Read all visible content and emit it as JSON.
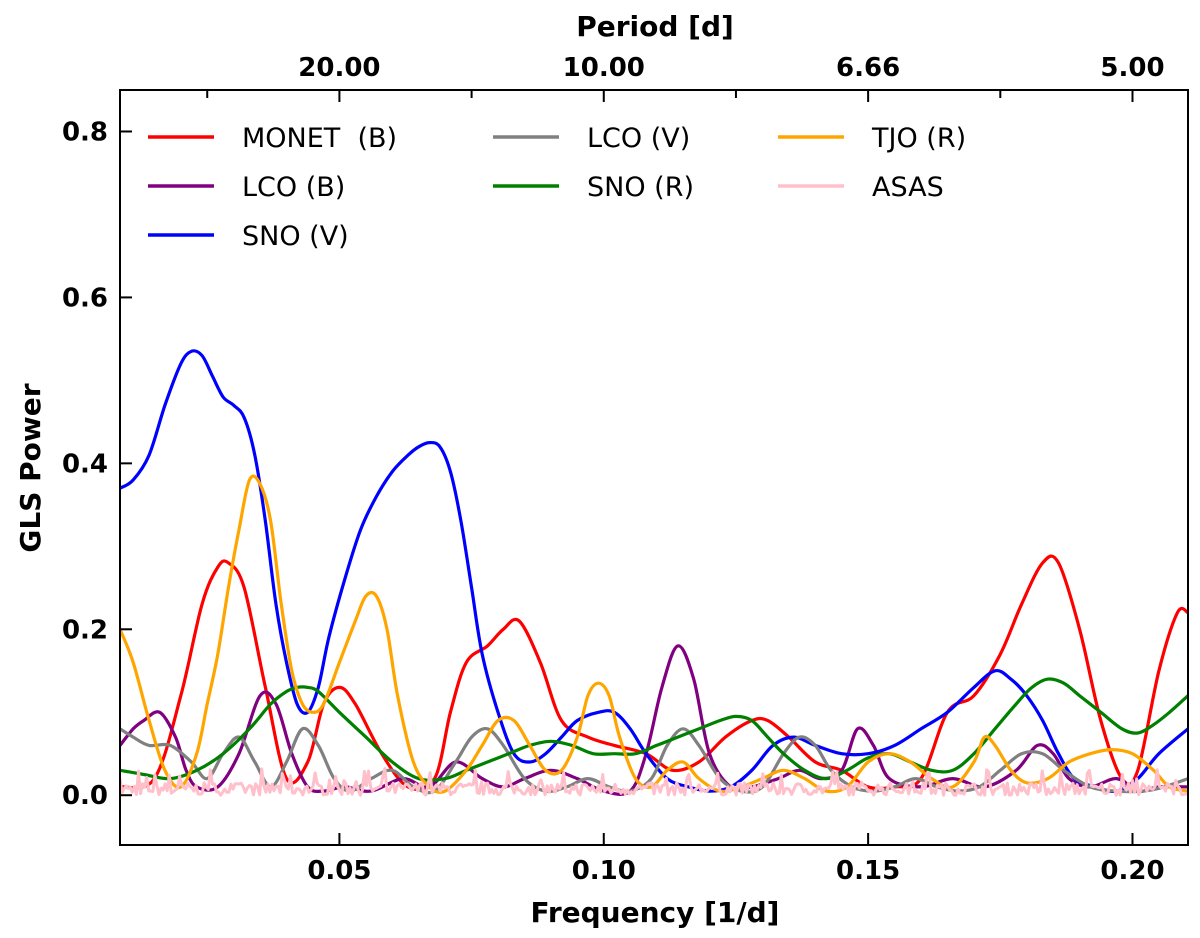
{
  "chart_data": {
    "type": "line",
    "title": "",
    "xlabel": "Frequency [1/d]",
    "ylabel": "GLS Power",
    "top_xlabel": "Period [d]",
    "xlim": [
      0.0085,
      0.2105
    ],
    "ylim": [
      -0.06,
      0.85
    ],
    "x_ticks": [
      0.05,
      0.1,
      0.15,
      0.2
    ],
    "x_tick_labels": [
      "0.05",
      "0.10",
      "0.15",
      "0.20"
    ],
    "y_ticks": [
      0.0,
      0.2,
      0.4,
      0.6,
      0.8
    ],
    "y_tick_labels": [
      "0.0",
      "0.2",
      "0.4",
      "0.6",
      "0.8"
    ],
    "top_ticks": [
      0.05,
      0.1,
      0.15,
      0.2
    ],
    "top_tick_labels": [
      "20.00",
      "10.00",
      "6.66",
      "5.00"
    ],
    "grid": false,
    "legend_location": "top-left",
    "series": [
      {
        "name": "MONET  (B)",
        "color": "#ff0000",
        "x": [
          0.0085,
          0.015,
          0.02,
          0.024,
          0.027,
          0.029,
          0.032,
          0.036,
          0.04,
          0.044,
          0.047,
          0.05,
          0.053,
          0.058,
          0.063,
          0.068,
          0.071,
          0.074,
          0.078,
          0.081,
          0.084,
          0.088,
          0.092,
          0.097,
          0.102,
          0.108,
          0.113,
          0.118,
          0.123,
          0.128,
          0.131,
          0.135,
          0.14,
          0.145,
          0.15,
          0.155,
          0.16,
          0.165,
          0.17,
          0.175,
          0.179,
          0.183,
          0.186,
          0.19,
          0.194,
          0.198,
          0.201,
          0.205,
          0.2085,
          0.2105
        ],
        "y": [
          0.01,
          0.02,
          0.12,
          0.23,
          0.275,
          0.28,
          0.25,
          0.13,
          0.02,
          0.04,
          0.11,
          0.13,
          0.11,
          0.05,
          0.01,
          0.02,
          0.1,
          0.16,
          0.18,
          0.2,
          0.21,
          0.16,
          0.09,
          0.07,
          0.06,
          0.05,
          0.03,
          0.04,
          0.07,
          0.09,
          0.09,
          0.07,
          0.04,
          0.03,
          0.01,
          0.01,
          0.02,
          0.1,
          0.12,
          0.17,
          0.23,
          0.28,
          0.28,
          0.2,
          0.09,
          0.02,
          0.03,
          0.15,
          0.22,
          0.22
        ]
      },
      {
        "name": "LCO (B)",
        "color": "#800080",
        "x": [
          0.0085,
          0.011,
          0.013,
          0.016,
          0.019,
          0.021,
          0.023,
          0.027,
          0.031,
          0.035,
          0.038,
          0.041,
          0.044,
          0.047,
          0.051,
          0.056,
          0.062,
          0.067,
          0.072,
          0.077,
          0.081,
          0.085,
          0.09,
          0.095,
          0.1,
          0.105,
          0.108,
          0.111,
          0.114,
          0.117,
          0.12,
          0.124,
          0.128,
          0.133,
          0.137,
          0.141,
          0.145,
          0.148,
          0.151,
          0.154,
          0.16,
          0.166,
          0.172,
          0.178,
          0.182,
          0.185,
          0.188,
          0.192,
          0.197,
          0.201,
          0.205,
          0.2105
        ],
        "y": [
          0.06,
          0.08,
          0.09,
          0.1,
          0.07,
          0.03,
          0.01,
          0.01,
          0.05,
          0.12,
          0.11,
          0.05,
          0.01,
          0.005,
          0.01,
          0.005,
          0.02,
          0.01,
          0.04,
          0.02,
          0.01,
          0.02,
          0.03,
          0.02,
          0.005,
          0.005,
          0.05,
          0.13,
          0.18,
          0.14,
          0.05,
          0.01,
          0.01,
          0.02,
          0.03,
          0.02,
          0.03,
          0.08,
          0.06,
          0.02,
          0.01,
          0.02,
          0.01,
          0.03,
          0.06,
          0.05,
          0.02,
          0.01,
          0.02,
          0.005,
          0.01,
          0.01
        ]
      },
      {
        "name": "SNO (V)",
        "color": "#0000ff",
        "x": [
          0.0085,
          0.011,
          0.014,
          0.017,
          0.02,
          0.022,
          0.024,
          0.026,
          0.028,
          0.03,
          0.032,
          0.034,
          0.036,
          0.038,
          0.04,
          0.042,
          0.044,
          0.046,
          0.048,
          0.051,
          0.054,
          0.057,
          0.06,
          0.063,
          0.065,
          0.067,
          0.069,
          0.071,
          0.073,
          0.075,
          0.077,
          0.08,
          0.083,
          0.086,
          0.089,
          0.092,
          0.095,
          0.099,
          0.102,
          0.105,
          0.108,
          0.112,
          0.116,
          0.12,
          0.124,
          0.128,
          0.132,
          0.136,
          0.14,
          0.145,
          0.15,
          0.155,
          0.16,
          0.165,
          0.17,
          0.174,
          0.177,
          0.18,
          0.183,
          0.186,
          0.189,
          0.193,
          0.197,
          0.201,
          0.205,
          0.2105
        ],
        "y": [
          0.37,
          0.38,
          0.41,
          0.47,
          0.52,
          0.535,
          0.53,
          0.505,
          0.48,
          0.47,
          0.455,
          0.41,
          0.33,
          0.23,
          0.16,
          0.11,
          0.1,
          0.13,
          0.19,
          0.26,
          0.32,
          0.36,
          0.39,
          0.41,
          0.42,
          0.425,
          0.42,
          0.39,
          0.33,
          0.25,
          0.17,
          0.1,
          0.05,
          0.04,
          0.05,
          0.07,
          0.09,
          0.1,
          0.1,
          0.08,
          0.05,
          0.02,
          0.01,
          0.005,
          0.01,
          0.03,
          0.06,
          0.07,
          0.06,
          0.05,
          0.05,
          0.06,
          0.08,
          0.1,
          0.13,
          0.15,
          0.14,
          0.12,
          0.09,
          0.05,
          0.02,
          0.01,
          0.005,
          0.02,
          0.05,
          0.08
        ]
      },
      {
        "name": "LCO (V)",
        "color": "#808080",
        "x": [
          0.0085,
          0.011,
          0.014,
          0.018,
          0.022,
          0.025,
          0.028,
          0.031,
          0.034,
          0.037,
          0.04,
          0.043,
          0.046,
          0.049,
          0.052,
          0.056,
          0.06,
          0.064,
          0.068,
          0.072,
          0.075,
          0.078,
          0.081,
          0.085,
          0.089,
          0.093,
          0.097,
          0.101,
          0.105,
          0.109,
          0.112,
          0.115,
          0.118,
          0.122,
          0.126,
          0.13,
          0.134,
          0.137,
          0.14,
          0.143,
          0.147,
          0.151,
          0.155,
          0.159,
          0.163,
          0.167,
          0.171,
          0.175,
          0.179,
          0.183,
          0.187,
          0.192,
          0.197,
          0.202,
          0.206,
          0.2105
        ],
        "y": [
          0.08,
          0.07,
          0.06,
          0.06,
          0.04,
          0.02,
          0.05,
          0.07,
          0.04,
          0.01,
          0.04,
          0.08,
          0.06,
          0.02,
          0.005,
          0.02,
          0.03,
          0.01,
          0.005,
          0.04,
          0.07,
          0.08,
          0.06,
          0.02,
          0.005,
          0.01,
          0.02,
          0.01,
          0.005,
          0.02,
          0.06,
          0.08,
          0.06,
          0.02,
          0.005,
          0.01,
          0.05,
          0.07,
          0.06,
          0.03,
          0.01,
          0.005,
          0.01,
          0.02,
          0.01,
          0.005,
          0.01,
          0.03,
          0.05,
          0.05,
          0.03,
          0.01,
          0.005,
          0.005,
          0.01,
          0.02
        ]
      },
      {
        "name": "SNO (R)",
        "color": "#008000",
        "x": [
          0.0085,
          0.013,
          0.018,
          0.023,
          0.028,
          0.033,
          0.037,
          0.04,
          0.042,
          0.044,
          0.046,
          0.05,
          0.055,
          0.06,
          0.065,
          0.07,
          0.074,
          0.078,
          0.082,
          0.086,
          0.09,
          0.094,
          0.098,
          0.102,
          0.106,
          0.11,
          0.114,
          0.118,
          0.122,
          0.125,
          0.128,
          0.131,
          0.134,
          0.138,
          0.142,
          0.146,
          0.15,
          0.154,
          0.158,
          0.162,
          0.166,
          0.17,
          0.174,
          0.178,
          0.181,
          0.184,
          0.187,
          0.19,
          0.194,
          0.198,
          0.201,
          0.204,
          0.207,
          0.2105
        ],
        "y": [
          0.03,
          0.025,
          0.02,
          0.03,
          0.05,
          0.08,
          0.11,
          0.125,
          0.13,
          0.13,
          0.125,
          0.1,
          0.07,
          0.04,
          0.02,
          0.02,
          0.03,
          0.04,
          0.05,
          0.06,
          0.065,
          0.06,
          0.05,
          0.05,
          0.05,
          0.06,
          0.07,
          0.08,
          0.09,
          0.095,
          0.09,
          0.07,
          0.05,
          0.03,
          0.02,
          0.03,
          0.045,
          0.05,
          0.04,
          0.03,
          0.03,
          0.05,
          0.08,
          0.11,
          0.13,
          0.14,
          0.135,
          0.12,
          0.1,
          0.08,
          0.075,
          0.085,
          0.1,
          0.12
        ]
      },
      {
        "name": "TJO (R)",
        "color": "#ffa500",
        "x": [
          0.0085,
          0.011,
          0.014,
          0.017,
          0.02,
          0.023,
          0.025,
          0.027,
          0.029,
          0.031,
          0.033,
          0.035,
          0.037,
          0.039,
          0.041,
          0.043,
          0.045,
          0.047,
          0.05,
          0.053,
          0.055,
          0.057,
          0.059,
          0.061,
          0.064,
          0.067,
          0.07,
          0.074,
          0.077,
          0.08,
          0.083,
          0.086,
          0.089,
          0.092,
          0.095,
          0.097,
          0.099,
          0.101,
          0.103,
          0.106,
          0.109,
          0.112,
          0.115,
          0.118,
          0.122,
          0.126,
          0.13,
          0.134,
          0.138,
          0.142,
          0.146,
          0.15,
          0.154,
          0.158,
          0.162,
          0.166,
          0.17,
          0.172,
          0.174,
          0.177,
          0.18,
          0.184,
          0.188,
          0.192,
          0.196,
          0.2,
          0.204,
          0.207,
          0.2105
        ],
        "y": [
          0.2,
          0.16,
          0.09,
          0.03,
          0.01,
          0.05,
          0.11,
          0.17,
          0.25,
          0.32,
          0.38,
          0.375,
          0.33,
          0.23,
          0.15,
          0.11,
          0.1,
          0.11,
          0.16,
          0.21,
          0.24,
          0.24,
          0.2,
          0.12,
          0.04,
          0.01,
          0.005,
          0.03,
          0.06,
          0.09,
          0.09,
          0.06,
          0.03,
          0.03,
          0.07,
          0.12,
          0.135,
          0.12,
          0.07,
          0.02,
          0.01,
          0.03,
          0.04,
          0.02,
          0.005,
          0.01,
          0.02,
          0.03,
          0.02,
          0.005,
          0.01,
          0.04,
          0.05,
          0.04,
          0.02,
          0.01,
          0.04,
          0.07,
          0.06,
          0.03,
          0.015,
          0.02,
          0.04,
          0.05,
          0.055,
          0.05,
          0.03,
          0.01,
          0.005
        ]
      },
      {
        "name": "ASAS",
        "color": "#ffc0cb",
        "noise": true,
        "x": [
          0.0085,
          0.2105
        ],
        "y": [
          0.0,
          0.025
        ]
      }
    ]
  }
}
